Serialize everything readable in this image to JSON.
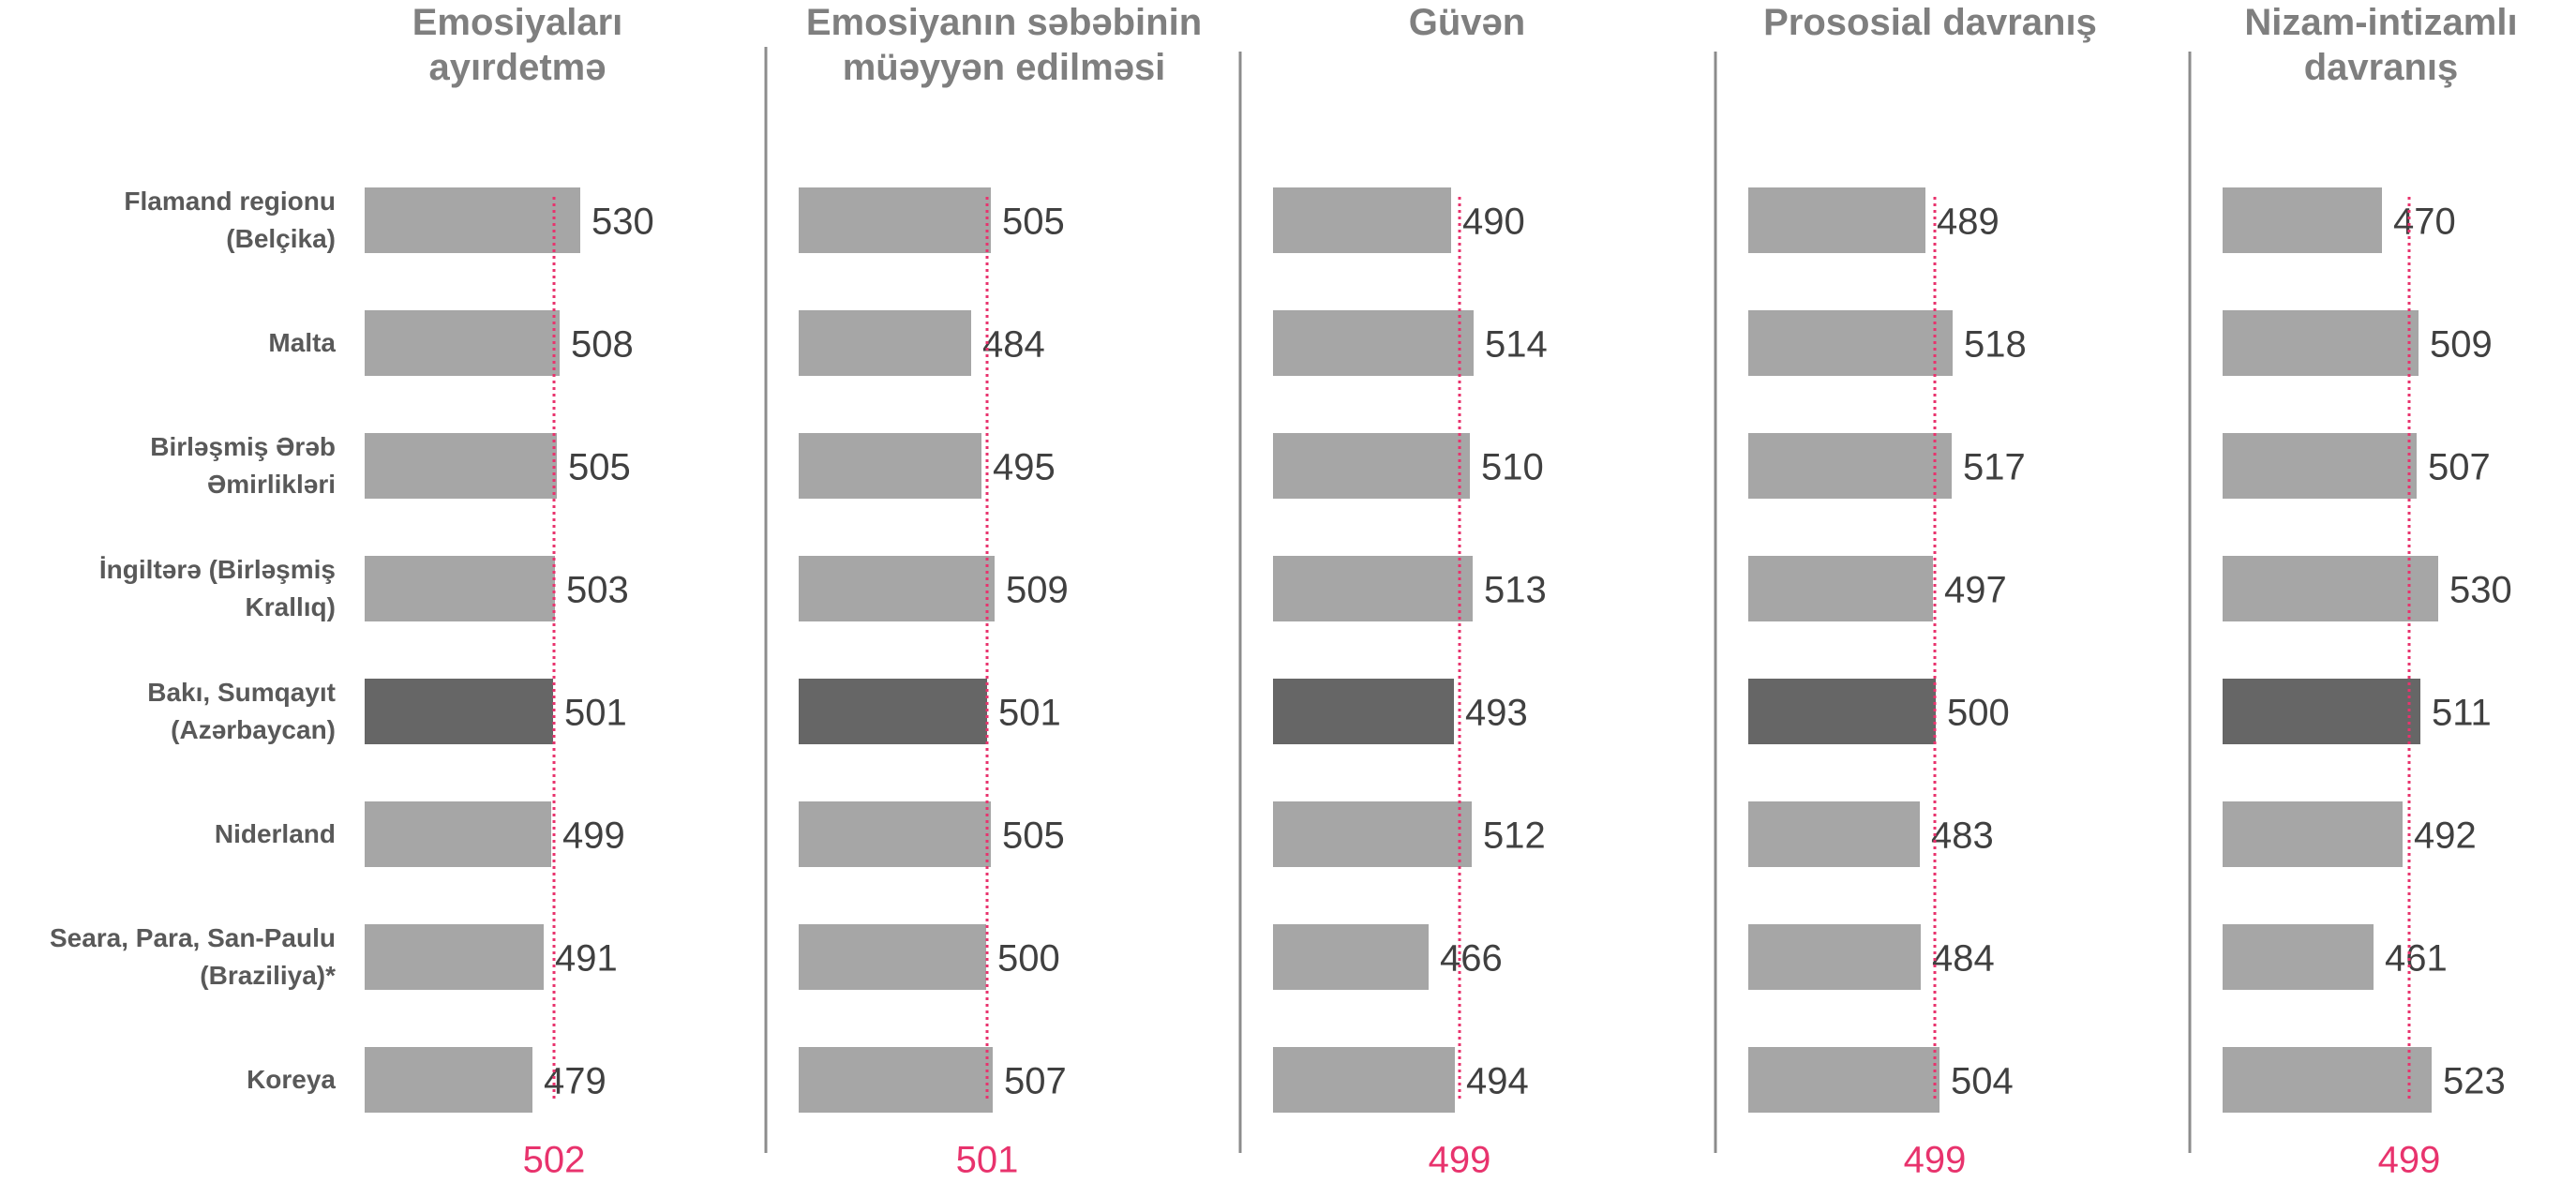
{
  "chart_data": [
    {
      "type": "bar",
      "title": "Emosiyaları ayırdetmə",
      "categories": [
        "Flamand regionu (Belçika)",
        "Malta",
        "Birləşmiş Ərəb Əmirlikləri",
        "İngiltərə (Birləşmiş Krallıq)",
        "Bakı, Sumqayıt (Azərbaycan)",
        "Niderland",
        "Seara, Para, San-Paulu (Braziliya)*",
        "Koreya"
      ],
      "values": [
        530,
        508,
        505,
        503,
        501,
        499,
        491,
        479
      ],
      "average": 502,
      "color": "#a6a6a6",
      "highlight": 4,
      "highlight_color": "#666666",
      "average_color": "#e8336d",
      "xlim": [
        300,
        600
      ]
    },
    {
      "type": "bar",
      "title": "Emosiyanın səbəbinin müəyyən edilməsi",
      "values": [
        505,
        484,
        495,
        509,
        501,
        505,
        500,
        507
      ],
      "average": 501,
      "color": "#a6a6a6",
      "highlight": 4,
      "highlight_color": "#666666",
      "average_color": "#e8336d",
      "xlim": [
        300,
        600
      ]
    },
    {
      "type": "bar",
      "title": "Güvən",
      "values": [
        490,
        514,
        510,
        513,
        493,
        512,
        466,
        494
      ],
      "average": 499,
      "color": "#a6a6a6",
      "highlight": 4,
      "highlight_color": "#666666",
      "average_color": "#e8336d",
      "xlim": [
        300,
        600
      ]
    },
    {
      "type": "bar",
      "title": "Prososial davranış",
      "values": [
        489,
        518,
        517,
        497,
        500,
        483,
        484,
        504
      ],
      "average": 499,
      "color": "#a6a6a6",
      "highlight": 4,
      "highlight_color": "#666666",
      "average_color": "#e8336d",
      "xlim": [
        300,
        600
      ]
    },
    {
      "type": "bar",
      "title": "Nizam-intizamlı davranış",
      "values": [
        470,
        509,
        507,
        530,
        511,
        492,
        461,
        523
      ],
      "average": 499,
      "color": "#a6a6a6",
      "highlight": 4,
      "highlight_color": "#666666",
      "average_color": "#e8336d",
      "xlim": [
        300,
        600
      ]
    }
  ]
}
